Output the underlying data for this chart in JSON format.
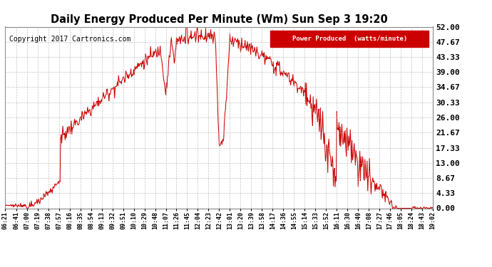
{
  "title": "Daily Energy Produced Per Minute (Wm) Sun Sep 3 19:20",
  "copyright": "Copyright 2017 Cartronics.com",
  "legend_label": "Power Produced  (watts/minute)",
  "legend_bg": "#cc0000",
  "line_color": "#cc0000",
  "bg_color": "#ffffff",
  "plot_bg": "#ffffff",
  "grid_color": "#aaaaaa",
  "ylim": [
    0,
    52.0
  ],
  "yticks": [
    0.0,
    4.33,
    8.67,
    13.0,
    17.33,
    21.67,
    26.0,
    30.33,
    34.67,
    39.0,
    43.33,
    47.67,
    52.0
  ],
  "xtick_labels": [
    "06:21",
    "06:41",
    "07:00",
    "07:19",
    "07:38",
    "07:57",
    "08:16",
    "08:35",
    "08:54",
    "09:13",
    "09:32",
    "09:51",
    "10:10",
    "10:29",
    "10:48",
    "11:07",
    "11:26",
    "11:45",
    "12:04",
    "12:23",
    "12:42",
    "13:01",
    "13:20",
    "13:39",
    "13:58",
    "14:17",
    "14:36",
    "14:55",
    "15:14",
    "15:33",
    "15:52",
    "16:11",
    "16:30",
    "16:49",
    "17:08",
    "17:27",
    "17:46",
    "18:05",
    "18:24",
    "18:43",
    "19:02"
  ]
}
